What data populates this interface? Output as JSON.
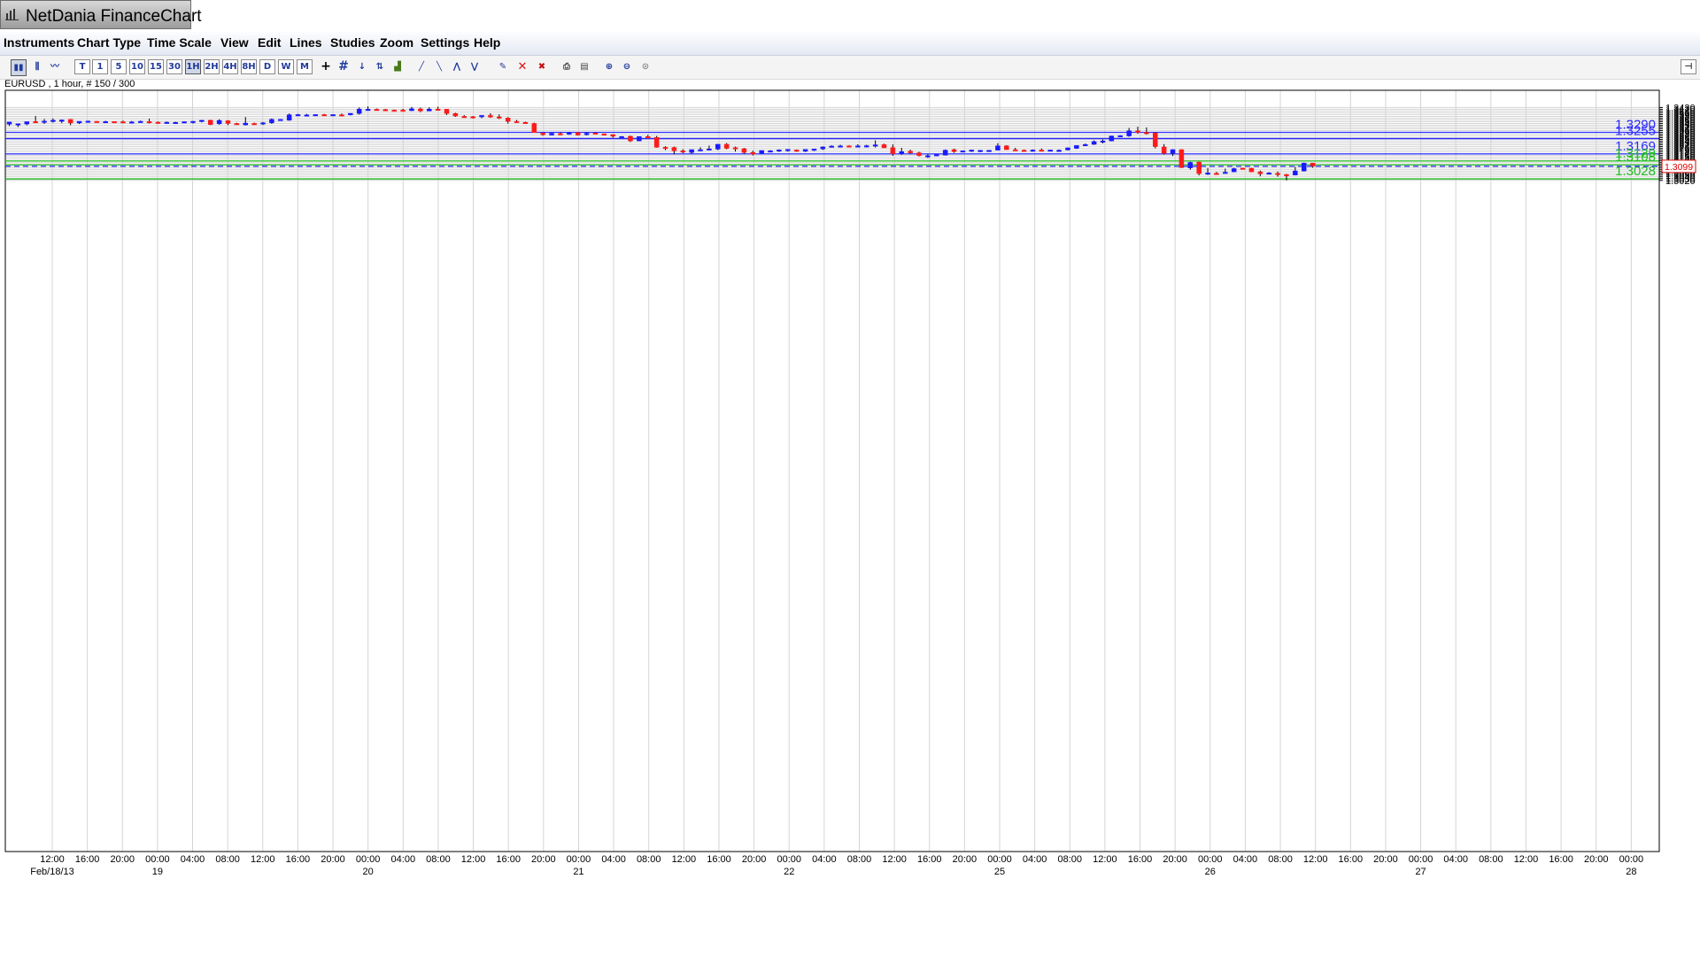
{
  "window": {
    "title": "NetDania FinanceChart"
  },
  "menu": [
    "Instruments",
    "Chart Type",
    "Time Scale",
    "View",
    "Edit",
    "Lines",
    "Studies",
    "Zoom",
    "Settings",
    "Help"
  ],
  "toolbar": {
    "timeframes": [
      "T",
      "1",
      "5",
      "10",
      "15",
      "30",
      "1H",
      "2H",
      "4H",
      "8H",
      "D",
      "W",
      "M"
    ],
    "selected_timeframe": "1H",
    "icons": [
      "candlestick-chart-icon",
      "bar-chart-icon",
      "line-chart-icon",
      "crosshair-icon",
      "grid-icon",
      "arrow-down-icon",
      "scale-icon",
      "volume-icon",
      "draw-line-icon-1",
      "draw-line-icon-2",
      "draw-line-icon-3",
      "draw-line-icon-4",
      "edit-line-icon",
      "delete-icon",
      "delete-all-icon",
      "print-icon",
      "print-preview-icon",
      "zoom-in-icon",
      "zoom-out-icon",
      "zoom-reset-icon",
      "pin-icon"
    ]
  },
  "chart_info": "EURUSD , 1 hour, # 150 / 300",
  "colors": {
    "up_candle": "#1a1aff",
    "down_candle": "#ff1a1a",
    "resistance_line": "#2b2bff",
    "support_line": "#22bb22",
    "current_price_line": "#2020ff"
  },
  "chart_data": {
    "type": "candlestick",
    "symbol": "EURUSD",
    "interval": "1 hour",
    "ylim": [
      1.3012,
      1.3441
    ],
    "y_ticks": [
      "1.3020",
      "1.3030",
      "1.3040",
      "1.3050",
      "1.3060",
      "1.3070",
      "1.3080",
      "1.3090",
      "1.3100",
      "1.3110",
      "1.3120",
      "1.3130",
      "1.3140",
      "1.3150",
      "1.3160",
      "1.3170",
      "1.3180",
      "1.3190",
      "1.3200",
      "1.3210",
      "1.3220",
      "1.3230",
      "1.3240",
      "1.3250",
      "1.3260",
      "1.3270",
      "1.3280",
      "1.3290",
      "1.3300",
      "1.3310",
      "1.3320",
      "1.3330",
      "1.3340",
      "1.3350",
      "1.3360",
      "1.3370",
      "1.3380",
      "1.3390",
      "1.3400",
      "1.3410",
      "1.3420",
      "1.3430"
    ],
    "current_price": 1.3099,
    "current_price_label": "1.3099",
    "x_ticks": [
      {
        "time": "12:00",
        "date": "Feb/18/13"
      },
      {
        "time": "16:00",
        "date": ""
      },
      {
        "time": "20:00",
        "date": ""
      },
      {
        "time": "00:00",
        "date": "19"
      },
      {
        "time": "04:00",
        "date": ""
      },
      {
        "time": "08:00",
        "date": ""
      },
      {
        "time": "12:00",
        "date": ""
      },
      {
        "time": "16:00",
        "date": ""
      },
      {
        "time": "20:00",
        "date": ""
      },
      {
        "time": "00:00",
        "date": "20"
      },
      {
        "time": "04:00",
        "date": ""
      },
      {
        "time": "08:00",
        "date": ""
      },
      {
        "time": "12:00",
        "date": ""
      },
      {
        "time": "16:00",
        "date": ""
      },
      {
        "time": "20:00",
        "date": ""
      },
      {
        "time": "00:00",
        "date": "21"
      },
      {
        "time": "04:00",
        "date": ""
      },
      {
        "time": "08:00",
        "date": ""
      },
      {
        "time": "12:00",
        "date": ""
      },
      {
        "time": "16:00",
        "date": ""
      },
      {
        "time": "20:00",
        "date": ""
      },
      {
        "time": "00:00",
        "date": "22"
      },
      {
        "time": "04:00",
        "date": ""
      },
      {
        "time": "08:00",
        "date": ""
      },
      {
        "time": "12:00",
        "date": ""
      },
      {
        "time": "16:00",
        "date": ""
      },
      {
        "time": "20:00",
        "date": ""
      },
      {
        "time": "00:00",
        "date": "25"
      },
      {
        "time": "04:00",
        "date": ""
      },
      {
        "time": "08:00",
        "date": ""
      },
      {
        "time": "12:00",
        "date": ""
      },
      {
        "time": "16:00",
        "date": ""
      },
      {
        "time": "20:00",
        "date": ""
      },
      {
        "time": "00:00",
        "date": "26"
      },
      {
        "time": "04:00",
        "date": ""
      },
      {
        "time": "08:00",
        "date": ""
      },
      {
        "time": "12:00",
        "date": ""
      },
      {
        "time": "16:00",
        "date": ""
      },
      {
        "time": "20:00",
        "date": ""
      },
      {
        "time": "00:00",
        "date": "27"
      },
      {
        "time": "04:00",
        "date": ""
      },
      {
        "time": "08:00",
        "date": ""
      },
      {
        "time": "12:00",
        "date": ""
      },
      {
        "time": "16:00",
        "date": ""
      },
      {
        "time": "20:00",
        "date": ""
      },
      {
        "time": "00:00",
        "date": "28"
      }
    ],
    "levels": [
      {
        "value": 1.329,
        "label": "1.3290",
        "kind": "resistance"
      },
      {
        "value": 1.3255,
        "label": "1.3255",
        "kind": "resistance"
      },
      {
        "value": 1.3169,
        "label": "1.3169",
        "kind": "resistance"
      },
      {
        "value": 1.3129,
        "label": "1.3129",
        "kind": "support"
      },
      {
        "value": 1.3108,
        "label": "1.3108",
        "kind": "support"
      },
      {
        "value": 1.3028,
        "label": "1.3028",
        "kind": "support"
      }
    ],
    "candles": [
      [
        1.3336,
        1.3348,
        1.3326,
        1.3348
      ],
      [
        1.3335,
        1.334,
        1.332,
        1.3338
      ],
      [
        1.3337,
        1.335,
        1.333,
        1.335
      ],
      [
        1.3351,
        1.3382,
        1.3345,
        1.3349
      ],
      [
        1.3348,
        1.3365,
        1.3338,
        1.3353
      ],
      [
        1.3353,
        1.3368,
        1.3345,
        1.3358
      ],
      [
        1.3352,
        1.3363,
        1.3342,
        1.336
      ],
      [
        1.3363,
        1.3365,
        1.333,
        1.3343
      ],
      [
        1.3343,
        1.3352,
        1.3337,
        1.3352
      ],
      [
        1.335,
        1.3356,
        1.3348,
        1.3353
      ],
      [
        1.3352,
        1.3353,
        1.3348,
        1.3351
      ],
      [
        1.3351,
        1.3355,
        1.3348,
        1.3351
      ],
      [
        1.3351,
        1.3352,
        1.3349,
        1.335
      ],
      [
        1.335,
        1.3356,
        1.3347,
        1.3349
      ],
      [
        1.3349,
        1.3354,
        1.3346,
        1.3349
      ],
      [
        1.3349,
        1.3356,
        1.3345,
        1.3352
      ],
      [
        1.3351,
        1.3367,
        1.334,
        1.3347
      ],
      [
        1.3347,
        1.3351,
        1.334,
        1.3342
      ],
      [
        1.3342,
        1.3351,
        1.3339,
        1.3347
      ],
      [
        1.3345,
        1.335,
        1.334,
        1.3346
      ],
      [
        1.3345,
        1.3352,
        1.3342,
        1.335
      ],
      [
        1.3346,
        1.3354,
        1.334,
        1.3352
      ],
      [
        1.3353,
        1.336,
        1.3346,
        1.3358
      ],
      [
        1.3358,
        1.3361,
        1.3331,
        1.3334
      ],
      [
        1.3338,
        1.3364,
        1.3333,
        1.3357
      ],
      [
        1.3355,
        1.3358,
        1.3331,
        1.334
      ],
      [
        1.334,
        1.3344,
        1.3334,
        1.3336
      ],
      [
        1.3332,
        1.3376,
        1.3329,
        1.3342
      ],
      [
        1.334,
        1.3345,
        1.3332,
        1.3338
      ],
      [
        1.3338,
        1.3348,
        1.3332,
        1.3344
      ],
      [
        1.3344,
        1.3368,
        1.3338,
        1.3363
      ],
      [
        1.3357,
        1.3365,
        1.3356,
        1.3363
      ],
      [
        1.3358,
        1.3396,
        1.3355,
        1.3389
      ],
      [
        1.3389,
        1.3394,
        1.3386,
        1.339
      ],
      [
        1.3387,
        1.3394,
        1.3384,
        1.3388
      ],
      [
        1.3388,
        1.3392,
        1.3386,
        1.339
      ],
      [
        1.339,
        1.3394,
        1.3383,
        1.3387
      ],
      [
        1.3384,
        1.3391,
        1.3385,
        1.339
      ],
      [
        1.3389,
        1.3396,
        1.3382,
        1.3384
      ],
      [
        1.3388,
        1.3397,
        1.3386,
        1.3397
      ],
      [
        1.3396,
        1.343,
        1.339,
        1.3421
      ],
      [
        1.342,
        1.3436,
        1.3413,
        1.342
      ],
      [
        1.342,
        1.3424,
        1.3416,
        1.3418
      ],
      [
        1.3418,
        1.3422,
        1.341,
        1.3415
      ],
      [
        1.3415,
        1.3418,
        1.3408,
        1.3413
      ],
      [
        1.3415,
        1.3422,
        1.341,
        1.3412
      ],
      [
        1.3412,
        1.3433,
        1.341,
        1.3423
      ],
      [
        1.3422,
        1.3429,
        1.3404,
        1.341
      ],
      [
        1.341,
        1.3431,
        1.3409,
        1.3421
      ],
      [
        1.3421,
        1.3434,
        1.3412,
        1.342
      ],
      [
        1.342,
        1.3422,
        1.3388,
        1.3396
      ],
      [
        1.3396,
        1.34,
        1.3377,
        1.3382
      ],
      [
        1.338,
        1.3387,
        1.3372,
        1.3378
      ],
      [
        1.3378,
        1.3382,
        1.3368,
        1.3377
      ],
      [
        1.3377,
        1.3385,
        1.337,
        1.3385
      ],
      [
        1.3385,
        1.3397,
        1.3372,
        1.3376
      ],
      [
        1.3377,
        1.3391,
        1.3365,
        1.3371
      ],
      [
        1.3371,
        1.3375,
        1.334,
        1.3352
      ],
      [
        1.3352,
        1.336,
        1.3343,
        1.3346
      ],
      [
        1.3346,
        1.335,
        1.3338,
        1.334
      ],
      [
        1.334,
        1.3345,
        1.3288,
        1.3289
      ],
      [
        1.3286,
        1.3288,
        1.3272,
        1.3277
      ],
      [
        1.3275,
        1.3287,
        1.3274,
        1.3285
      ],
      [
        1.3283,
        1.329,
        1.3275,
        1.328
      ],
      [
        1.328,
        1.3292,
        1.3276,
        1.3286
      ],
      [
        1.3289,
        1.329,
        1.3273,
        1.3275
      ],
      [
        1.3277,
        1.329,
        1.3273,
        1.3285
      ],
      [
        1.3286,
        1.3289,
        1.3278,
        1.328
      ],
      [
        1.3282,
        1.3283,
        1.3276,
        1.3278
      ],
      [
        1.3277,
        1.3279,
        1.326,
        1.3268
      ],
      [
        1.3264,
        1.3269,
        1.326,
        1.3266
      ],
      [
        1.3268,
        1.3272,
        1.3236,
        1.3242
      ],
      [
        1.3242,
        1.3265,
        1.324,
        1.3266
      ],
      [
        1.3266,
        1.3276,
        1.326,
        1.3262
      ],
      [
        1.3262,
        1.327,
        1.3204,
        1.3206
      ],
      [
        1.3206,
        1.3212,
        1.319,
        1.3203
      ],
      [
        1.3205,
        1.321,
        1.3166,
        1.3186
      ],
      [
        1.3186,
        1.3195,
        1.3173,
        1.318
      ],
      [
        1.3177,
        1.3194,
        1.3169,
        1.3193
      ],
      [
        1.3193,
        1.3206,
        1.3186,
        1.3193
      ],
      [
        1.3192,
        1.3216,
        1.319,
        1.3197
      ],
      [
        1.3196,
        1.3224,
        1.319,
        1.3223
      ],
      [
        1.3223,
        1.323,
        1.3195,
        1.32
      ],
      [
        1.3204,
        1.321,
        1.3182,
        1.3197
      ],
      [
        1.3198,
        1.3202,
        1.317,
        1.3177
      ],
      [
        1.3177,
        1.3187,
        1.316,
        1.3168
      ],
      [
        1.3172,
        1.3188,
        1.317,
        1.3188
      ],
      [
        1.3184,
        1.319,
        1.3182,
        1.3186
      ],
      [
        1.3186,
        1.3194,
        1.318,
        1.3192
      ],
      [
        1.3188,
        1.3196,
        1.3182,
        1.3194
      ],
      [
        1.3191,
        1.3194,
        1.3181,
        1.3184
      ],
      [
        1.3184,
        1.3194,
        1.318,
        1.3194
      ],
      [
        1.3193,
        1.3196,
        1.3185,
        1.3196
      ],
      [
        1.3197,
        1.3211,
        1.3191,
        1.3208
      ],
      [
        1.3208,
        1.3217,
        1.3207,
        1.3213
      ],
      [
        1.3213,
        1.322,
        1.3207,
        1.3214
      ],
      [
        1.3214,
        1.3217,
        1.3208,
        1.321
      ],
      [
        1.321,
        1.3223,
        1.3208,
        1.3214
      ],
      [
        1.3214,
        1.322,
        1.3205,
        1.3215
      ],
      [
        1.3217,
        1.3245,
        1.3205,
        1.322
      ],
      [
        1.3221,
        1.3226,
        1.3203,
        1.3203
      ],
      [
        1.3204,
        1.3222,
        1.3158,
        1.317
      ],
      [
        1.317,
        1.3203,
        1.3164,
        1.3182
      ],
      [
        1.3184,
        1.3193,
        1.317,
        1.3175
      ],
      [
        1.3175,
        1.3181,
        1.3155,
        1.3159
      ],
      [
        1.3156,
        1.3167,
        1.3146,
        1.3159
      ],
      [
        1.316,
        1.3166,
        1.3156,
        1.3165
      ],
      [
        1.3162,
        1.3194,
        1.316,
        1.319
      ],
      [
        1.3193,
        1.3198,
        1.3175,
        1.3182
      ],
      [
        1.3182,
        1.3186,
        1.318,
        1.3186
      ],
      [
        1.3186,
        1.3193,
        1.318,
        1.3191
      ],
      [
        1.3189,
        1.319,
        1.3179,
        1.3189
      ],
      [
        1.3189,
        1.319,
        1.3188,
        1.3189
      ],
      [
        1.319,
        1.3229,
        1.3188,
        1.3214
      ],
      [
        1.3214,
        1.3218,
        1.3193,
        1.3193
      ],
      [
        1.3193,
        1.3203,
        1.3188,
        1.3192
      ],
      [
        1.319,
        1.3194,
        1.3184,
        1.3187
      ],
      [
        1.3187,
        1.3194,
        1.3182,
        1.3191
      ],
      [
        1.3191,
        1.3199,
        1.3184,
        1.3187
      ],
      [
        1.3187,
        1.3192,
        1.3184,
        1.3191
      ],
      [
        1.319,
        1.3194,
        1.3185,
        1.319
      ],
      [
        1.3191,
        1.3205,
        1.3188,
        1.3203
      ],
      [
        1.32,
        1.3215,
        1.3197,
        1.3216
      ],
      [
        1.3216,
        1.3227,
        1.3213,
        1.3222
      ],
      [
        1.3223,
        1.3245,
        1.322,
        1.3238
      ],
      [
        1.3238,
        1.325,
        1.3228,
        1.3242
      ],
      [
        1.3242,
        1.3271,
        1.324,
        1.327
      ],
      [
        1.3268,
        1.3274,
        1.3263,
        1.3272
      ],
      [
        1.327,
        1.3315,
        1.3265,
        1.3299
      ],
      [
        1.3299,
        1.3322,
        1.3282,
        1.329
      ],
      [
        1.329,
        1.3317,
        1.3277,
        1.3287
      ],
      [
        1.3287,
        1.3291,
        1.32,
        1.321
      ],
      [
        1.3208,
        1.3224,
        1.3165,
        1.3172
      ],
      [
        1.3172,
        1.3195,
        1.3157,
        1.3193
      ],
      [
        1.3193,
        1.3195,
        1.309,
        1.3092
      ],
      [
        1.309,
        1.3125,
        1.308,
        1.3121
      ],
      [
        1.3123,
        1.3125,
        1.3048,
        1.3058
      ],
      [
        1.3057,
        1.309,
        1.3051,
        1.3062
      ],
      [
        1.306,
        1.3068,
        1.3054,
        1.3059
      ],
      [
        1.306,
        1.3086,
        1.3058,
        1.3066
      ],
      [
        1.3068,
        1.3091,
        1.3066,
        1.3086
      ],
      [
        1.3089,
        1.309,
        1.3081,
        1.3085
      ],
      [
        1.3088,
        1.3091,
        1.3066,
        1.3068
      ],
      [
        1.3068,
        1.3075,
        1.3043,
        1.3057
      ],
      [
        1.3059,
        1.3066,
        1.3055,
        1.3062
      ],
      [
        1.306,
        1.307,
        1.3041,
        1.3052
      ],
      [
        1.3053,
        1.3056,
        1.302,
        1.305
      ],
      [
        1.305,
        1.3096,
        1.3048,
        1.3073
      ],
      [
        1.3073,
        1.312,
        1.307,
        1.3117
      ],
      [
        1.3117,
        1.3118,
        1.3091,
        1.3099
      ]
    ]
  }
}
